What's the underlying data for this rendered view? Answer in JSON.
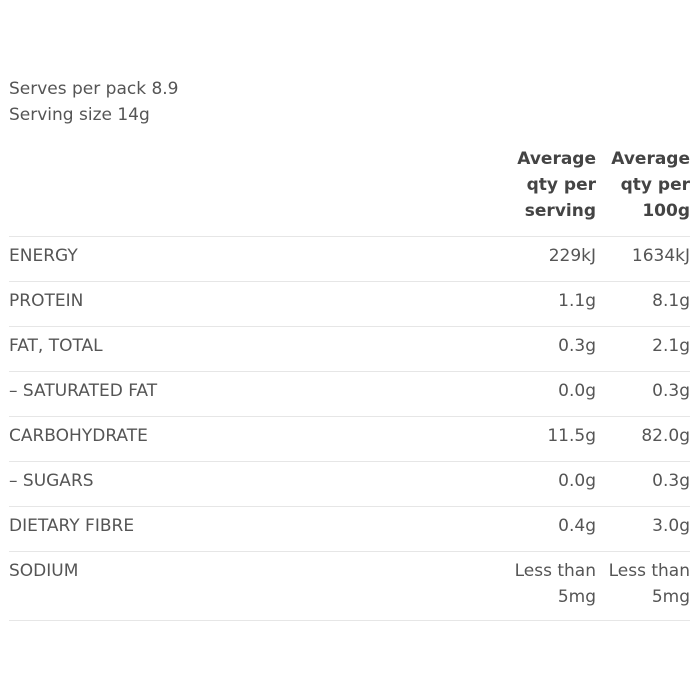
{
  "serving_info": {
    "serves_per_pack": "Serves per pack 8.9",
    "serving_size": "Serving size 14g"
  },
  "table": {
    "headers": {
      "per_serving": "Average qty per serving",
      "per_100g": "Average qty per 100g"
    },
    "rows": [
      {
        "name": "ENERGY",
        "per_serving": "229kJ",
        "per_100g": "1634kJ"
      },
      {
        "name": "PROTEIN",
        "per_serving": "1.1g",
        "per_100g": "8.1g"
      },
      {
        "name": "FAT, TOTAL",
        "per_serving": "0.3g",
        "per_100g": "2.1g"
      },
      {
        "name": "– SATURATED FAT",
        "per_serving": "0.0g",
        "per_100g": "0.3g"
      },
      {
        "name": "CARBOHYDRATE",
        "per_serving": "11.5g",
        "per_100g": "82.0g"
      },
      {
        "name": "– SUGARS",
        "per_serving": "0.0g",
        "per_100g": "0.3g"
      },
      {
        "name": "DIETARY FIBRE",
        "per_serving": "0.4g",
        "per_100g": "3.0g"
      },
      {
        "name": "SODIUM",
        "per_serving": "Less than 5mg",
        "per_100g": "Less than 5mg"
      }
    ]
  }
}
